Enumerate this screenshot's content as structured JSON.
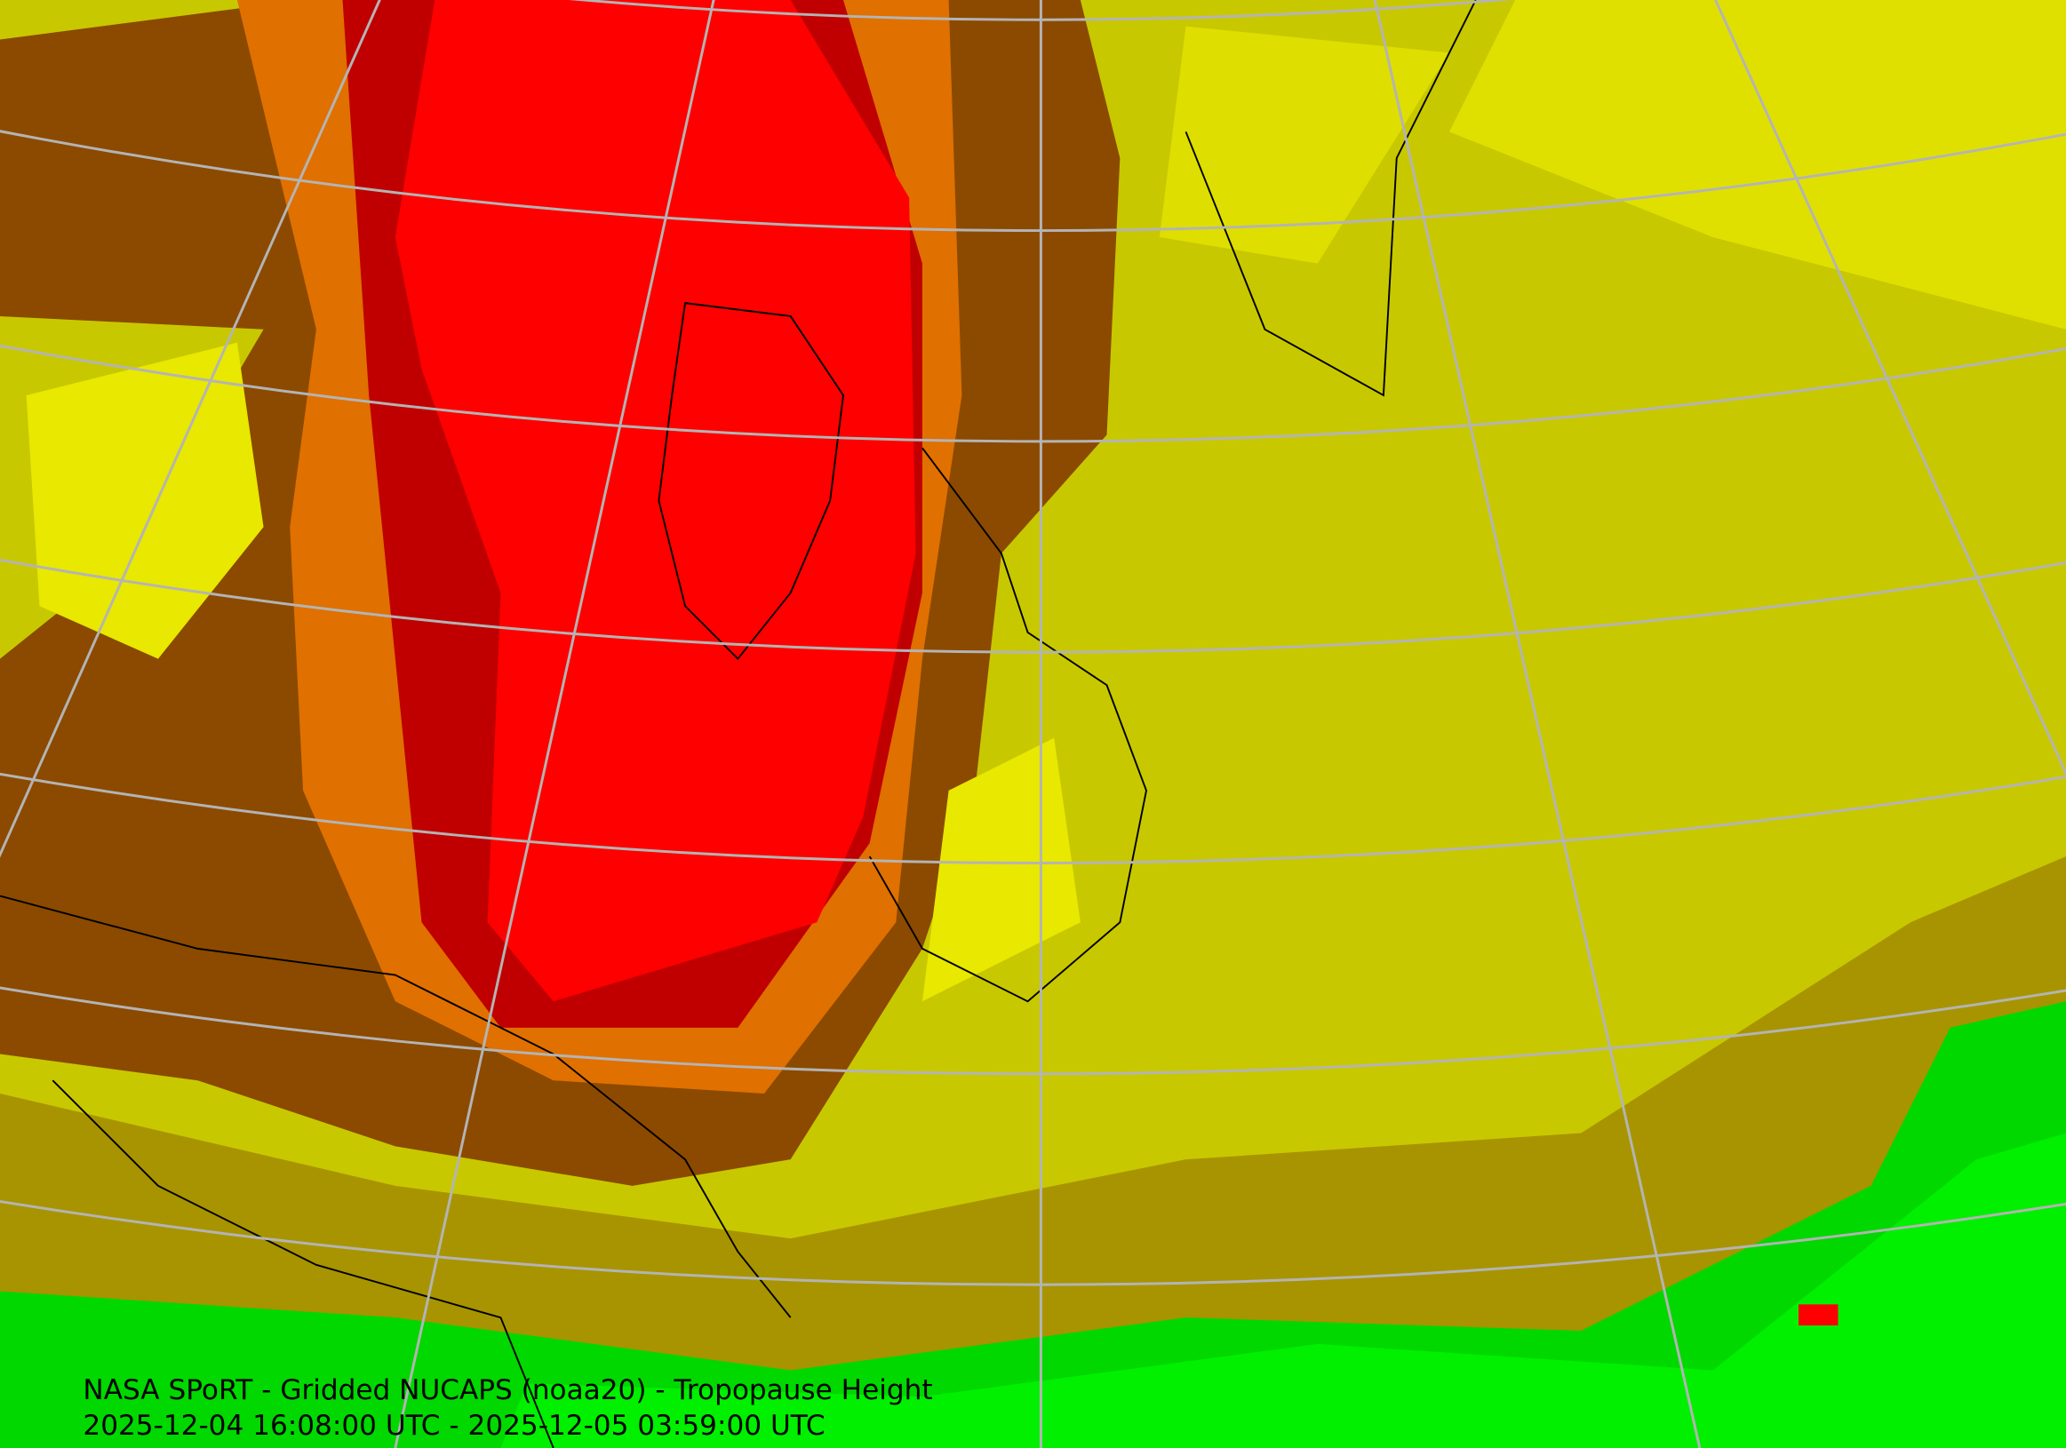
{
  "caption": {
    "title": "NASA SPoRT - Gridded NUCAPS (noaa20) - Tropopause Height",
    "time_range": "2025-12-04 16:08:00 UTC - 2025-12-05 03:59:00 UTC"
  }
}
